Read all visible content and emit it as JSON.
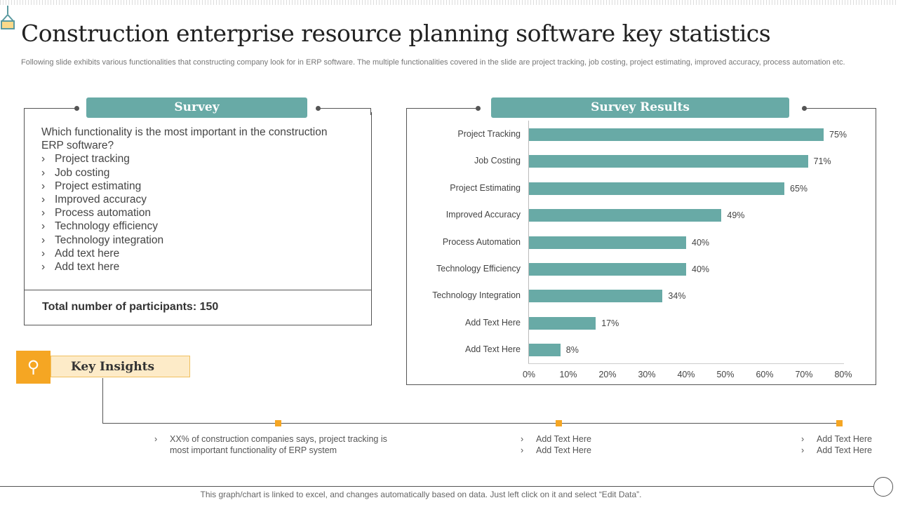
{
  "title": "Construction enterprise resource planning software key statistics",
  "subtitle": "Following slide exhibits various functionalities that constructing company look for in ERP software. The multiple functionalities covered in the slide are project tracking, job costing, project estimating, improved accuracy, process automation etc.",
  "survey": {
    "header": "Survey",
    "question": "Which functionality  is the most important in the construction ERP software?",
    "options": [
      "Project tracking",
      "Job costing",
      "Project estimating",
      "Improved accuracy",
      "Process automation",
      "Technology  efficiency",
      "Technology  integration",
      "Add text here",
      "Add text here"
    ],
    "total": "Total number of participants: 150"
  },
  "results": {
    "header": "Survey Results"
  },
  "chart_data": {
    "type": "bar",
    "orientation": "horizontal",
    "categories": [
      "Project Tracking",
      "Job Costing",
      "Project Estimating",
      "Improved Accuracy",
      "Process Automation",
      "Technology Efficiency",
      "Technology Integration",
      "Add Text Here",
      "Add Text Here"
    ],
    "values": [
      75,
      71,
      65,
      49,
      40,
      40,
      34,
      17,
      8
    ],
    "data_labels": [
      "75%",
      "71%",
      "65%",
      "49%",
      "40%",
      "40%",
      "34%",
      "17%",
      "8%"
    ],
    "xlim": [
      0,
      80
    ],
    "x_ticks": [
      "0%",
      "10%",
      "20%",
      "30%",
      "40%",
      "50%",
      "60%",
      "70%",
      "80%"
    ],
    "grid": false,
    "bar_color": "#68aaa6"
  },
  "key_insights": {
    "label": "Key Insights",
    "icon": "lightbulb-search-icon",
    "items": [
      [
        "XX%  of construction companies says, project tracking is most important functionality of ERP system"
      ],
      [
        "Add Text Here",
        "Add Text Here"
      ],
      [
        "Add Text Here",
        "Add Text Here"
      ]
    ]
  },
  "footer": "This graph/chart is linked to excel,  and changes automatically based on data. Just left click on it and select “Edit Data”.",
  "colors": {
    "accent": "#68aaa6",
    "highlight": "#f5a623"
  }
}
